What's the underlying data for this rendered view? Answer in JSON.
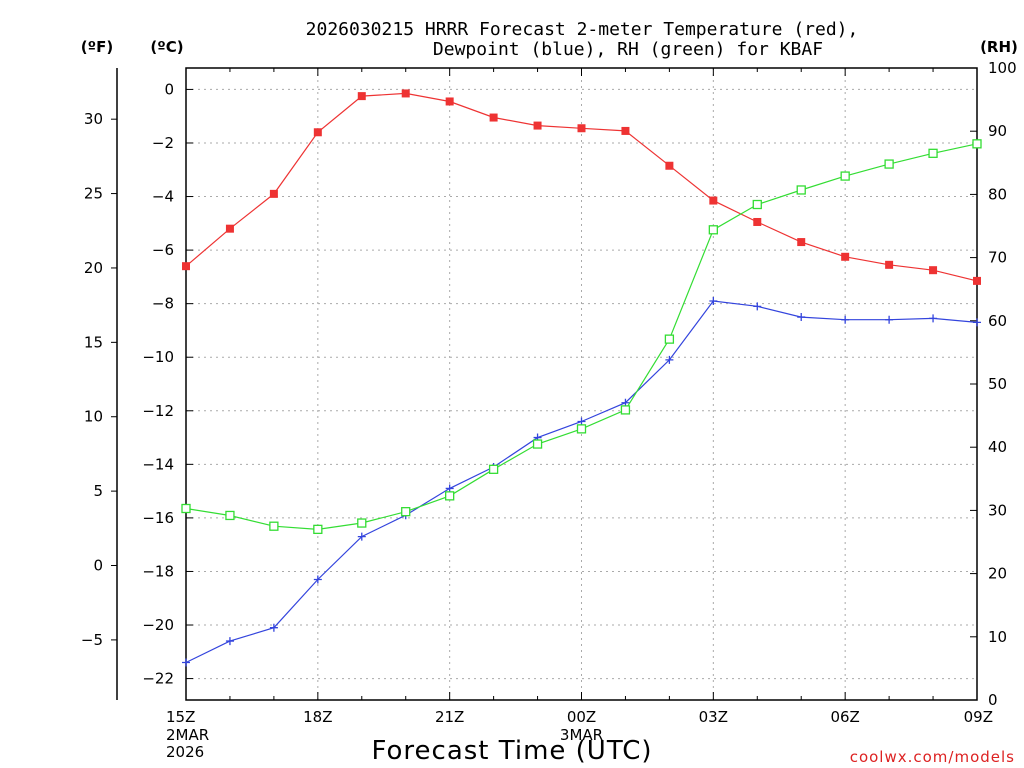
{
  "chart_data": {
    "type": "line",
    "title_line1": "2026030215 HRRR Forecast 2-meter Temperature (red),",
    "title_line2": "Dewpoint (blue), RH (green) for KBAF",
    "left_unit_f": "(ºF)",
    "left_unit_c": "(ºC)",
    "right_unit": "(RH)",
    "xlabel": "Forecast Time (UTC)",
    "watermark": "coolwx.com/models",
    "x_hours": [
      0,
      1,
      2,
      3,
      4,
      5,
      6,
      7,
      8,
      9,
      10,
      11,
      12,
      13,
      14,
      15,
      16,
      17,
      18
    ],
    "x_ticks": [
      {
        "hour": 0,
        "label": "15Z",
        "sub1": "2MAR",
        "sub2": "2026"
      },
      {
        "hour": 3,
        "label": "18Z",
        "sub1": "",
        "sub2": ""
      },
      {
        "hour": 6,
        "label": "21Z",
        "sub1": "",
        "sub2": ""
      },
      {
        "hour": 9,
        "label": "00Z",
        "sub1": "3MAR",
        "sub2": ""
      },
      {
        "hour": 12,
        "label": "03Z",
        "sub1": "",
        "sub2": ""
      },
      {
        "hour": 15,
        "label": "06Z",
        "sub1": "",
        "sub2": ""
      },
      {
        "hour": 18,
        "label": "09Z",
        "sub1": "",
        "sub2": ""
      }
    ],
    "y_c_range": [
      -22.8,
      0.8
    ],
    "y_c_ticks": [
      0,
      -2,
      -4,
      -6,
      -8,
      -10,
      -12,
      -14,
      -16,
      -18,
      -20,
      -22
    ],
    "y_c_labels": [
      "0",
      "−2",
      "−4",
      "−6",
      "−8",
      "−10",
      "−12",
      "−14",
      "−16",
      "−18",
      "−20",
      "−22"
    ],
    "y_f_ticks": [
      30,
      25,
      20,
      15,
      10,
      5,
      0,
      -5
    ],
    "y_f_labels": [
      "30",
      "25",
      "20",
      "15",
      "10",
      "5",
      "0",
      "−5"
    ],
    "y_rh_range": [
      0,
      100
    ],
    "y_rh_ticks": [
      0,
      10,
      20,
      30,
      40,
      50,
      60,
      70,
      80,
      90,
      100
    ],
    "y_rh_labels": [
      "0",
      "10",
      "20",
      "30",
      "40",
      "50",
      "60",
      "70",
      "80",
      "90",
      "100"
    ],
    "series": [
      {
        "name": "Temperature",
        "unit": "C",
        "color": "#ee3333",
        "marker": "square-filled",
        "values": [
          -6.6,
          -5.2,
          -3.9,
          -1.6,
          -0.25,
          -0.15,
          -0.45,
          -1.05,
          -1.35,
          -1.45,
          -1.55,
          -2.85,
          -4.15,
          -4.95,
          -5.7,
          -6.25,
          -6.55,
          -6.75,
          -7.15
        ]
      },
      {
        "name": "Dewpoint",
        "unit": "C",
        "color": "#3344dd",
        "marker": "plus",
        "values": [
          -21.4,
          -20.6,
          -20.1,
          -18.3,
          -16.7,
          -15.9,
          -14.9,
          -14.1,
          -13.0,
          -12.4,
          -11.7,
          -10.1,
          -7.9,
          -8.1,
          -8.5,
          -8.6,
          -8.6,
          -8.55,
          -8.7
        ]
      },
      {
        "name": "RH",
        "unit": "%",
        "color": "#33dd33",
        "marker": "square-open",
        "values": [
          30.3,
          29.2,
          27.5,
          27.0,
          28.0,
          29.8,
          32.3,
          36.5,
          40.5,
          42.9,
          45.9,
          57.1,
          74.4,
          78.4,
          80.7,
          82.9,
          84.8,
          86.5,
          88.0
        ]
      }
    ]
  }
}
